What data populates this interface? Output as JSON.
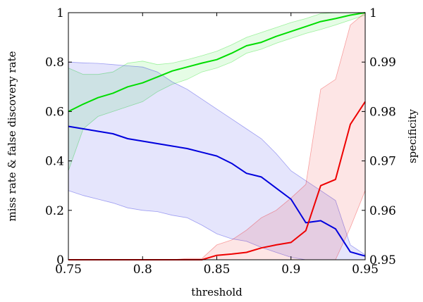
{
  "chart_data": {
    "type": "line",
    "xlabel": "threshold",
    "ylabel_left": "miss rate & false discovery rate",
    "ylabel_right": "specificity",
    "xlim": [
      0.75,
      0.95
    ],
    "ylim_left": [
      0,
      1
    ],
    "ylim_right": [
      0.95,
      1
    ],
    "x_ticks": [
      "0.75",
      "0.8",
      "0.85",
      "0.9",
      "0.95"
    ],
    "y_left_ticks": [
      "0",
      "0.2",
      "0.4",
      "0.6",
      "0.8",
      "1"
    ],
    "y_right_ticks": [
      "0.95",
      "0.96",
      "0.97",
      "0.98",
      "0.99",
      "1"
    ],
    "grid": false,
    "x": [
      0.75,
      0.76,
      0.77,
      0.78,
      0.79,
      0.8,
      0.81,
      0.82,
      0.83,
      0.84,
      0.85,
      0.86,
      0.87,
      0.88,
      0.89,
      0.9,
      0.91,
      0.92,
      0.93,
      0.94,
      0.95
    ],
    "series": [
      {
        "axis": "right",
        "color": "#00dd00",
        "values": [
          0.98,
          0.9815,
          0.9828,
          0.9837,
          0.985,
          0.9858,
          0.987,
          0.9882,
          0.989,
          0.9898,
          0.9905,
          0.9918,
          0.9933,
          0.994,
          0.9952,
          0.9962,
          0.9972,
          0.9982,
          0.9988,
          0.9995,
          1.0
        ],
        "lower": [
          0.968,
          0.9765,
          0.979,
          0.98,
          0.981,
          0.982,
          0.984,
          0.9855,
          0.9865,
          0.988,
          0.9888,
          0.99,
          0.9918,
          0.9926,
          0.9938,
          0.9948,
          0.9958,
          0.9966,
          0.9975,
          0.9985,
          0.9995
        ],
        "upper": [
          0.9888,
          0.9875,
          0.9875,
          0.988,
          0.9898,
          0.9902,
          0.9895,
          0.9898,
          0.9905,
          0.9913,
          0.9922,
          0.9935,
          0.995,
          0.996,
          0.997,
          0.998,
          0.9988,
          0.9998,
          1.0,
          1.0,
          1.0
        ]
      },
      {
        "axis": "left",
        "color": "#0000dd",
        "values": [
          0.54,
          0.53,
          0.52,
          0.51,
          0.49,
          0.48,
          0.47,
          0.46,
          0.45,
          0.435,
          0.42,
          0.39,
          0.35,
          0.335,
          0.29,
          0.245,
          0.15,
          0.158,
          0.125,
          0.032,
          0.015
        ],
        "lower": [
          0.28,
          0.26,
          0.245,
          0.23,
          0.21,
          0.2,
          0.195,
          0.18,
          0.17,
          0.14,
          0.105,
          0.085,
          0.075,
          0.05,
          0.03,
          0.01,
          0.0,
          0.0,
          0.0,
          0.0,
          0.0
        ],
        "upper": [
          0.8,
          0.797,
          0.795,
          0.79,
          0.785,
          0.78,
          0.76,
          0.72,
          0.69,
          0.65,
          0.61,
          0.57,
          0.53,
          0.49,
          0.43,
          0.36,
          0.32,
          0.28,
          0.24,
          0.06,
          0.02
        ]
      },
      {
        "axis": "left",
        "color": "#ee0000",
        "values": [
          0,
          0,
          0,
          0,
          0,
          0,
          0,
          0,
          0,
          0,
          0.018,
          0.023,
          0.03,
          0.048,
          0.06,
          0.07,
          0.118,
          0.3,
          0.325,
          0.548,
          0.64
        ],
        "lower": [
          0,
          0,
          0,
          0,
          0,
          0,
          0,
          0,
          0,
          0,
          0,
          0,
          0,
          0,
          0,
          0,
          0,
          0,
          0,
          0.13,
          0.28
        ],
        "upper": [
          0,
          0,
          0,
          0,
          0,
          0,
          0,
          0,
          0.005,
          0.005,
          0.06,
          0.08,
          0.12,
          0.17,
          0.2,
          0.25,
          0.305,
          0.69,
          0.73,
          0.95,
          1.0
        ]
      }
    ]
  }
}
